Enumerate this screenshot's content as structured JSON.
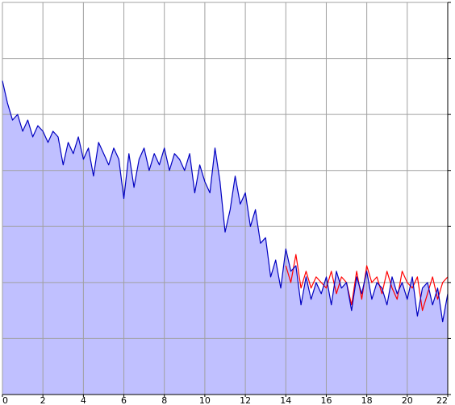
{
  "chart_data": {
    "type": "area-line",
    "xlim": [
      0,
      22
    ],
    "xticks": [
      0,
      2,
      4,
      6,
      8,
      10,
      12,
      14,
      16,
      18,
      20,
      22
    ],
    "ylim": [
      0,
      7
    ],
    "yticks": [
      0,
      1,
      2,
      3,
      4,
      5,
      6,
      7
    ],
    "grid": true,
    "series": [
      {
        "color": "#ff0000",
        "x": [
          14,
          14.25,
          14.5,
          14.75,
          15,
          15.25,
          15.5,
          15.75,
          16,
          16.25,
          16.5,
          16.75,
          17,
          17.25,
          17.5,
          17.75,
          18,
          18.25,
          18.5,
          18.75,
          19,
          19.25,
          19.5,
          19.75,
          20,
          20.25,
          20.5,
          20.75,
          21,
          21.25,
          21.5,
          21.75,
          22
        ],
        "values": [
          2.3,
          2.0,
          2.5,
          1.9,
          2.2,
          1.9,
          2.1,
          2.0,
          1.9,
          2.2,
          1.8,
          2.1,
          2.0,
          1.6,
          2.2,
          1.7,
          2.3,
          2.0,
          2.1,
          1.8,
          2.2,
          1.9,
          1.7,
          2.2,
          2.0,
          1.9,
          2.1,
          1.5,
          1.8,
          2.1,
          1.7,
          2.0,
          2.1
        ]
      },
      {
        "color": "#0000c0",
        "fill": "#c0c0ff",
        "x": [
          0,
          0.25,
          0.5,
          0.75,
          1,
          1.25,
          1.5,
          1.75,
          2,
          2.25,
          2.5,
          2.75,
          3,
          3.25,
          3.5,
          3.75,
          4,
          4.25,
          4.5,
          4.75,
          5,
          5.25,
          5.5,
          5.75,
          6,
          6.25,
          6.5,
          6.75,
          7,
          7.25,
          7.5,
          7.75,
          8,
          8.25,
          8.5,
          8.75,
          9,
          9.25,
          9.5,
          9.75,
          10,
          10.25,
          10.5,
          10.75,
          11,
          11.25,
          11.5,
          11.75,
          12,
          12.25,
          12.5,
          12.75,
          13,
          13.25,
          13.5,
          13.75,
          14,
          14.25,
          14.5,
          14.75,
          15,
          15.25,
          15.5,
          15.75,
          16,
          16.25,
          16.5,
          16.75,
          17,
          17.25,
          17.5,
          17.75,
          18,
          18.25,
          18.5,
          18.75,
          19,
          19.25,
          19.5,
          19.75,
          20,
          20.25,
          20.5,
          20.75,
          21,
          21.25,
          21.5,
          21.75,
          22
        ],
        "values": [
          5.6,
          5.2,
          4.9,
          5.0,
          4.7,
          4.9,
          4.6,
          4.8,
          4.7,
          4.5,
          4.7,
          4.6,
          4.1,
          4.5,
          4.3,
          4.6,
          4.2,
          4.4,
          3.9,
          4.5,
          4.3,
          4.1,
          4.4,
          4.2,
          3.5,
          4.3,
          3.7,
          4.2,
          4.4,
          4.0,
          4.3,
          4.1,
          4.4,
          4.0,
          4.3,
          4.2,
          4.0,
          4.3,
          3.6,
          4.1,
          3.8,
          3.6,
          4.4,
          3.8,
          2.9,
          3.3,
          3.9,
          3.4,
          3.6,
          3.0,
          3.3,
          2.7,
          2.8,
          2.1,
          2.4,
          1.9,
          2.6,
          2.2,
          2.3,
          1.6,
          2.1,
          1.7,
          2.0,
          1.8,
          2.1,
          1.6,
          2.2,
          1.9,
          2.0,
          1.5,
          2.1,
          1.8,
          2.2,
          1.7,
          2.0,
          1.9,
          1.6,
          2.1,
          1.8,
          2.0,
          1.7,
          2.1,
          1.4,
          1.9,
          2.0,
          1.6,
          1.9,
          1.3,
          1.8
        ]
      }
    ]
  }
}
